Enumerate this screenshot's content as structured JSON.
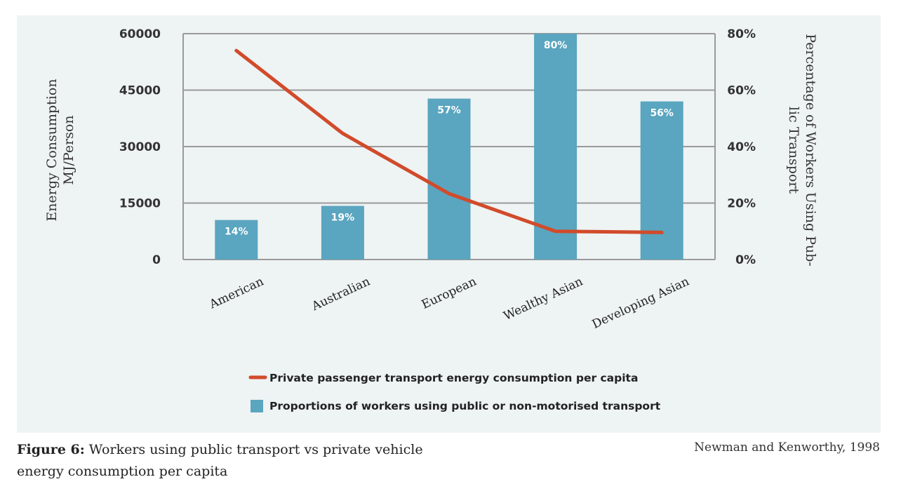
{
  "chart_data": {
    "type": "bar",
    "categories": [
      "American",
      "Australian",
      "European",
      "Wealthy Asian",
      "Developing Asian"
    ],
    "series": [
      {
        "name": "Proportions of workers using public or non-motorised transport",
        "type": "bar",
        "axis": "right",
        "values": [
          14,
          19,
          57,
          80,
          56
        ],
        "labels": [
          "14%",
          "19%",
          "57%",
          "80%",
          "56%"
        ],
        "color": "#5aa5bf"
      },
      {
        "name": "Private passenger transport energy consumption per capita",
        "type": "line",
        "axis": "left",
        "values": [
          55500,
          33500,
          17500,
          7500,
          7200
        ],
        "color": "#d14b2b"
      }
    ],
    "y_left": {
      "label_line1": "Energy Consumption",
      "label_line2": "MJ/Person",
      "range": [
        0,
        60000
      ],
      "ticks": [
        "0",
        "15000",
        "30000",
        "45000",
        "60000"
      ]
    },
    "y_right": {
      "label_line1": "Percentage of Workers Using Pub-",
      "label_line2": "lic Transport",
      "range": [
        0,
        80
      ],
      "ticks": [
        "0%",
        "20%",
        "40%",
        "60%",
        "80%"
      ]
    },
    "grid": true,
    "legend_position": "bottom"
  },
  "caption": {
    "label": "Figure 6:",
    "text": " Workers using public transport vs private vehicle energy consumption per capita"
  },
  "source": "Newman and Kenworthy, 1998"
}
